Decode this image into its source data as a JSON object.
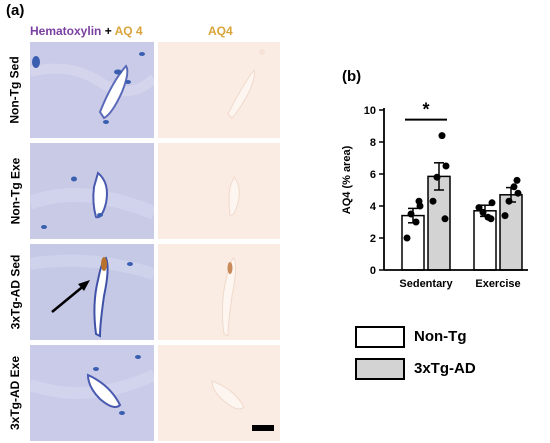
{
  "figure": {
    "panel_a": "(a)",
    "panel_b": "(b)",
    "col1_header_part1": "Hematoxylin",
    "col1_header_plus": " + ",
    "col1_header_part2": "AQ 4",
    "col2_header": "AQ4",
    "rows": [
      "Non-Tg Sed",
      "Non-Tg Exe",
      "3xTg-AD Sed",
      "3xTg-AD Exe"
    ],
    "colors": {
      "hematoxylin_text": "#7b3fa0",
      "aq4_text": "#d9a43a",
      "hema_stain": "#c9cbe8",
      "aq4_stain": "#fbece3",
      "nuclei": "#3a5fb0",
      "dab": "#b8722e"
    }
  },
  "chart_data": {
    "type": "bar",
    "categories": [
      "Sedentary",
      "Exercise"
    ],
    "ylabel": "AQ4 (% area)",
    "ylim": [
      0,
      10
    ],
    "yticks": [
      "0",
      "2",
      "4",
      "6",
      "8",
      "10"
    ],
    "significance": "*",
    "series": [
      {
        "name": "Non-Tg",
        "color": "#ffffff",
        "values": [
          3.4,
          3.7
        ],
        "errors": [
          0.45,
          0.35
        ],
        "points": [
          [
            3.0,
            4.0,
            3.5,
            2.0,
            4.3
          ],
          [
            3.3,
            4.2,
            3.6,
            3.9,
            3.2
          ]
        ]
      },
      {
        "name": "3xTg-AD",
        "color": "#d3d3d3",
        "values": [
          5.85,
          4.7
        ],
        "errors": [
          0.85,
          0.45
        ],
        "points": [
          [
            8.4,
            6.5,
            5.8,
            4.3,
            3.2
          ],
          [
            5.2,
            4.8,
            4.3,
            3.4,
            5.6
          ]
        ]
      }
    ]
  },
  "legend": {
    "items": [
      {
        "label": "Non-Tg",
        "color": "#ffffff"
      },
      {
        "label": "3xTg-AD",
        "color": "#d3d3d3"
      }
    ]
  }
}
